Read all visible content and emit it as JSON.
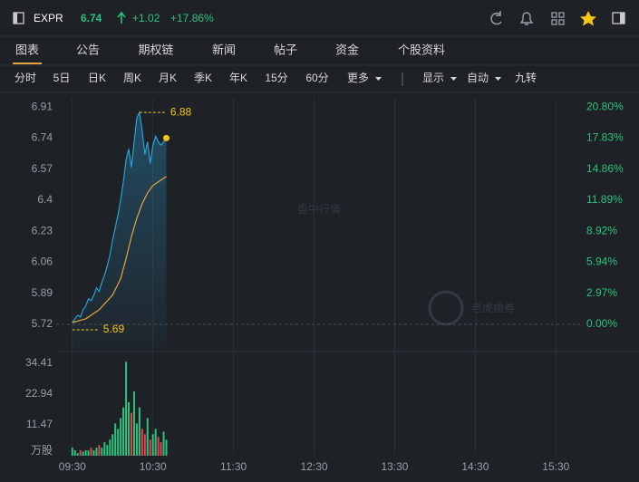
{
  "header": {
    "symbol": "EXPR",
    "price": "6.74",
    "change": "+1.02",
    "change_pct": "+17.86%"
  },
  "tabs": [
    "图表",
    "公告",
    "期权链",
    "新闻",
    "帖子",
    "资金",
    "个股资料"
  ],
  "periods": [
    "分时",
    "5日",
    "日K",
    "周K",
    "月K",
    "季K",
    "年K",
    "15分",
    "60分"
  ],
  "menus": [
    "更多",
    "显示",
    "自动"
  ],
  "extra_button": "九转",
  "watermarks": [
    "盘中行情",
    "老虎證券"
  ],
  "chart_data": {
    "type": "line",
    "x": [
      0,
      2,
      4,
      6,
      8,
      10,
      12,
      14,
      16,
      18,
      20,
      22,
      24,
      26,
      28,
      30,
      32,
      34,
      36,
      38,
      40,
      42,
      44,
      46,
      48,
      50,
      52,
      54,
      56,
      58,
      60,
      62,
      64,
      66,
      68,
      70
    ],
    "xlim": [
      -12,
      378
    ],
    "xticks": [
      {
        "value": 0,
        "label": "09:30"
      },
      {
        "value": 60,
        "label": "10:30"
      },
      {
        "value": 120,
        "label": "11:30"
      },
      {
        "value": 180,
        "label": "12:30"
      },
      {
        "value": 240,
        "label": "13:30"
      },
      {
        "value": 300,
        "label": "14:30"
      },
      {
        "value": 360,
        "label": "15:30"
      }
    ],
    "series": [
      {
        "name": "price",
        "color": "#2a9fd8",
        "values": [
          5.73,
          5.75,
          5.77,
          5.76,
          5.8,
          5.82,
          5.86,
          5.85,
          5.88,
          5.92,
          5.9,
          5.95,
          5.99,
          6.04,
          6.1,
          6.18,
          6.25,
          6.32,
          6.4,
          6.5,
          6.62,
          6.68,
          6.58,
          6.72,
          6.85,
          6.88,
          6.78,
          6.65,
          6.72,
          6.6,
          6.7,
          6.75,
          6.72,
          6.7,
          6.72,
          6.74
        ]
      },
      {
        "name": "average",
        "color": "#e8a33c",
        "x": [
          0,
          10,
          20,
          30,
          36,
          40,
          44,
          48,
          52,
          56,
          60,
          64,
          70
        ],
        "values": [
          5.73,
          5.75,
          5.8,
          5.88,
          5.97,
          6.08,
          6.2,
          6.3,
          6.38,
          6.44,
          6.48,
          6.5,
          6.53
        ]
      }
    ],
    "ylim": [
      5.586,
      6.96
    ],
    "yticks": [
      5.72,
      5.89,
      6.06,
      6.23,
      6.4,
      6.57,
      6.74,
      6.91
    ],
    "y2lim": [
      -2.343,
      21.678
    ],
    "y2ticks": [
      {
        "value": 0,
        "label": "0.00%"
      },
      {
        "value": 2.97,
        "label": "2.97%"
      },
      {
        "value": 5.94,
        "label": "5.94%"
      },
      {
        "value": 8.92,
        "label": "8.92%"
      },
      {
        "value": 11.89,
        "label": "11.89%"
      },
      {
        "value": 14.86,
        "label": "14.86%"
      },
      {
        "value": 17.83,
        "label": "17.83%"
      },
      {
        "value": 20.8,
        "label": "20.80%"
      }
    ],
    "annotations": [
      {
        "value": 6.88
      },
      {
        "value": 5.69
      }
    ],
    "volume": {
      "unit": "万股",
      "values": [
        3,
        2,
        1,
        2,
        1.5,
        2,
        2,
        3,
        2,
        3,
        4,
        3,
        5,
        4,
        6,
        8,
        12,
        10,
        14,
        18,
        35,
        20,
        16,
        24,
        12,
        18,
        10,
        8,
        14,
        6,
        8,
        10,
        7,
        5,
        9,
        6
      ],
      "ylim": [
        0,
        38.12
      ],
      "yticks": [
        11.47,
        22.94,
        34.41
      ],
      "up_color": "#2ec27e",
      "down_color": "#e0474c"
    }
  }
}
